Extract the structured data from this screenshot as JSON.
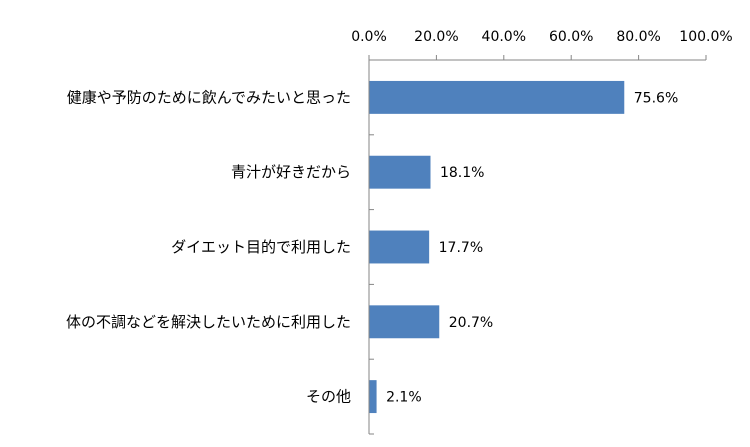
{
  "chart_data": {
    "type": "bar",
    "orientation": "horizontal",
    "categories": [
      "健康や予防のために飲んでみたいと思った",
      "青汁が好きだから",
      "ダイエット目的で利用した",
      "体の不調などを解決したいために利用した",
      "その他"
    ],
    "values": [
      75.6,
      18.1,
      17.7,
      20.7,
      2.1
    ],
    "data_labels": [
      "75.6%",
      "18.1%",
      "17.7%",
      "20.7%",
      "2.1%"
    ],
    "xlim": [
      0,
      100
    ],
    "x_ticks": [
      0,
      20,
      40,
      60,
      80,
      100
    ],
    "x_tick_labels": [
      "0.0%",
      "20.0%",
      "40.0%",
      "60.0%",
      "80.0%",
      "100.0%"
    ],
    "axis_position": "top",
    "grid": false,
    "legend": "none",
    "bar_color": "#4F81BD"
  }
}
